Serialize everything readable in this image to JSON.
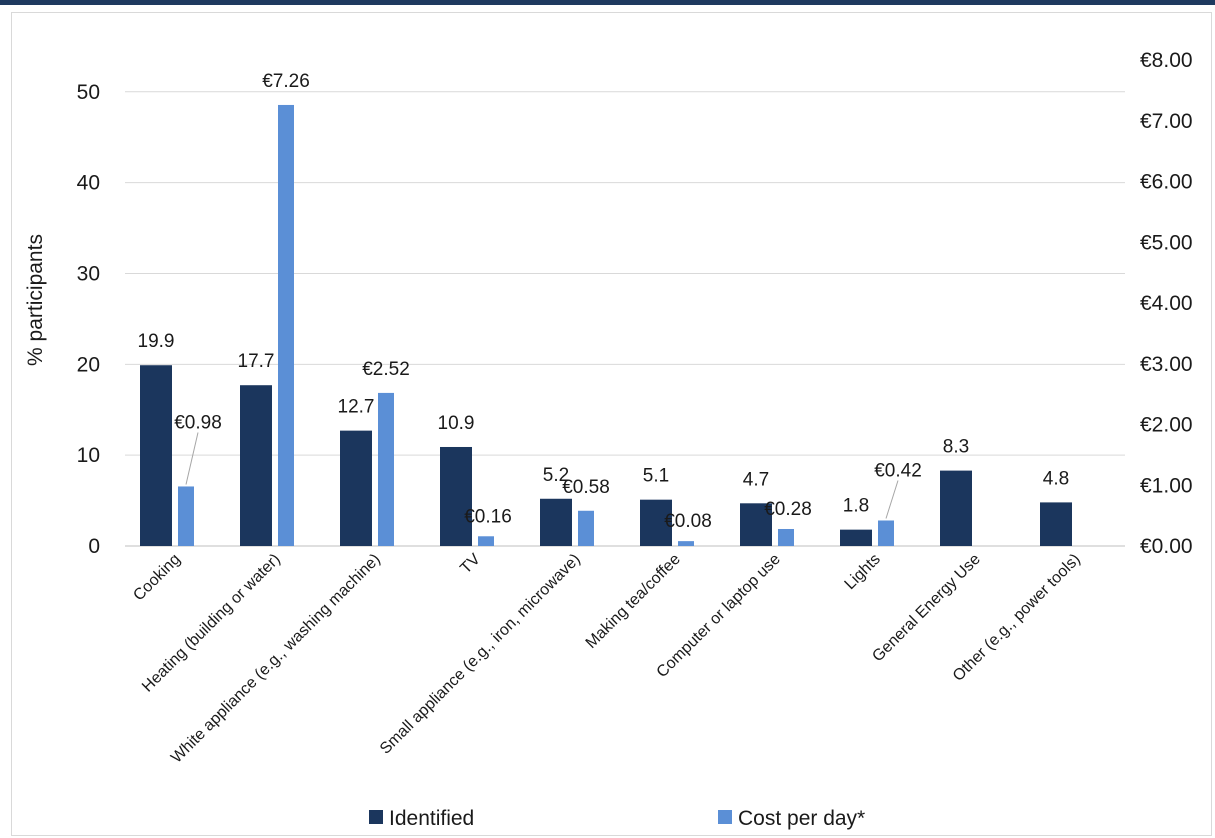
{
  "chart_data": {
    "type": "bar",
    "categories": [
      "Cooking",
      "Heating (building or water)",
      "White appliance (e.g., washing machine)",
      "TV",
      "Small appliance (e.g., iron, microwave)",
      "Making tea/coffee",
      "Computer or laptop use",
      "Lights",
      "General Energy Use",
      "Other (e.g., power tools)"
    ],
    "series": [
      {
        "name": "Identified",
        "axis": "left",
        "color": "#1b365d",
        "values": [
          19.9,
          17.7,
          12.7,
          10.9,
          5.2,
          5.1,
          4.7,
          1.8,
          8.3,
          4.8
        ],
        "labels": [
          "19.9",
          "17.7",
          "12.7",
          "10.9",
          "5.2",
          "5.1",
          "4.7",
          "1.8",
          "8.3",
          "4.8"
        ]
      },
      {
        "name": "Cost per day*",
        "axis": "right",
        "color": "#5b8fd6",
        "values": [
          0.98,
          7.26,
          2.52,
          0.16,
          0.58,
          0.08,
          0.28,
          0.42,
          null,
          null
        ],
        "labels": [
          "€0.98",
          "€7.26",
          "€2.52",
          "€0.16",
          "€0.58",
          "€0.08",
          "€0.28",
          "€0.42",
          "",
          ""
        ]
      }
    ],
    "ylabel": "% participants",
    "ylim": [
      0,
      53.5
    ],
    "yticks": [
      0,
      10,
      20,
      30,
      40,
      50
    ],
    "y2lim": [
      0,
      8
    ],
    "y2ticks": [
      "€0.00",
      "€1.00",
      "€2.00",
      "€3.00",
      "€4.00",
      "€5.00",
      "€6.00",
      "€7.00",
      "€8.00"
    ],
    "grid": true,
    "legend_position": "bottom"
  }
}
